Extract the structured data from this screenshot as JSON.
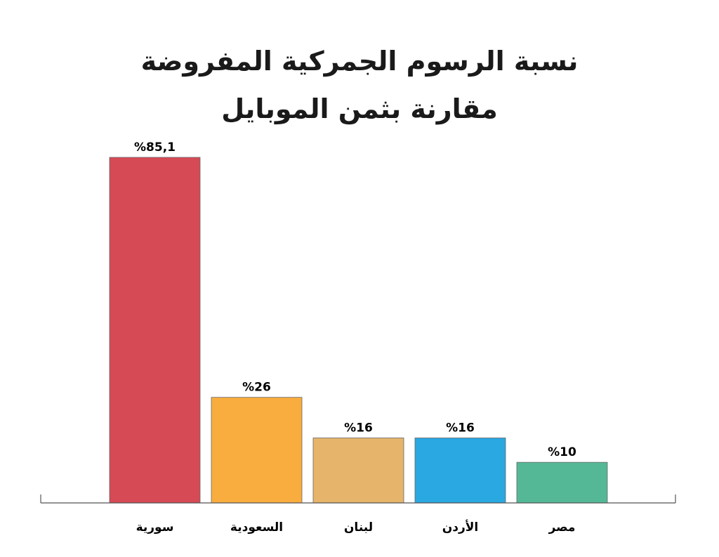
{
  "chart_data": {
    "type": "bar",
    "title": [
      "نسبة الرسوم الجمركية المفروضة",
      "مقارنة بثمن الموبايل"
    ],
    "categories": [
      "سورية",
      "السعودية",
      "لبنان",
      "الأردن",
      "مصر"
    ],
    "values": [
      85.1,
      26,
      16,
      16,
      10
    ],
    "value_labels": [
      "%85,1",
      "%26",
      "%16",
      "%16",
      "%10"
    ],
    "colors": [
      "#d54a55",
      "#f9ad3e",
      "#e6b46a",
      "#29a8e1",
      "#54b896"
    ],
    "xlabel": "",
    "ylabel": "",
    "grid": false
  }
}
